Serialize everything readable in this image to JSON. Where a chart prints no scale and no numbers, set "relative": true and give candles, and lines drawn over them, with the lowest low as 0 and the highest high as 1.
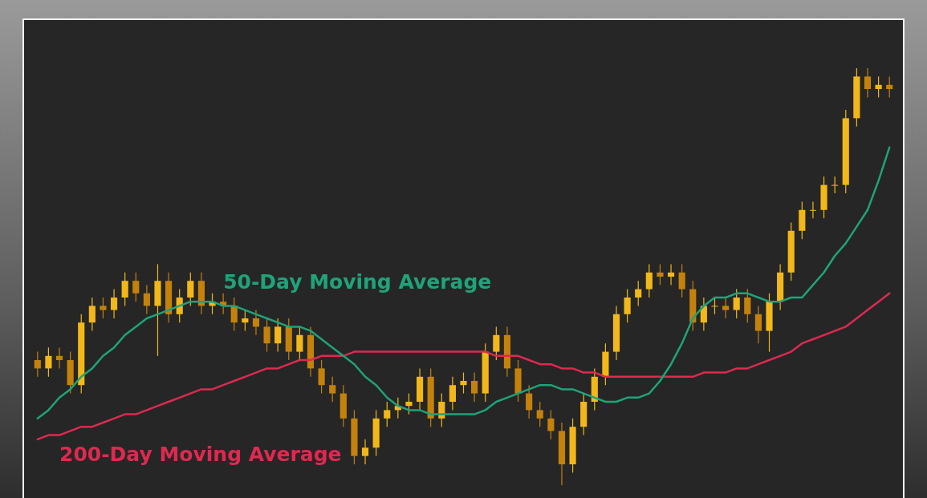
{
  "chart_data": {
    "type": "candlestick",
    "relative": true,
    "colors": [
      "#c4820c",
      "#f2b81a",
      "#c4820c",
      "#c4820c",
      "#f2b81a",
      "#f2b81a",
      "#c4820c",
      "#f2b81a",
      "#f2b81a",
      "#c4820c",
      "#c4820c",
      "#f2b81a",
      "#c4820c",
      "#f2b81a",
      "#f2b81a",
      "#c4820c",
      "#f2b81a",
      "#c4820c",
      "#c4820c",
      "#f2b81a",
      "#c4820c",
      "#c4820c",
      "#f2b81a",
      "#c4820c",
      "#f2b81a",
      "#c4820c",
      "#c4820c",
      "#c4820c",
      "#c4820c",
      "#c4820c",
      "#f2b81a",
      "#f2b81a",
      "#f2b81a",
      "#f2b81a",
      "#f2b81a",
      "#f2b81a",
      "#c4820c",
      "#f2b81a",
      "#f2b81a",
      "#f2b81a",
      "#c4820c",
      "#f2b81a",
      "#f2b81a",
      "#c4820c",
      "#c4820c",
      "#c4820c",
      "#c4820c",
      "#c4820c",
      "#c4820c",
      "#f2b81a",
      "#f2b81a",
      "#f2b81a",
      "#f2b81a",
      "#f2b81a",
      "#f2b81a",
      "#f2b81a",
      "#f2b81a",
      "#c4820c",
      "#f2b81a",
      "#c4820c",
      "#c4820c",
      "#f2b81a",
      "#f2b81a",
      "#c4820c",
      "#f2b81a",
      "#c4820c",
      "#c4820c",
      "#f2b81a",
      "#f2b81a",
      "#f2b81a",
      "#f2b81a",
      "#f2b81a",
      "#f2b81a",
      "#f2b81a",
      "#f2b81a",
      "#f2b81a",
      "#c4820c",
      "#f2b81a",
      "#c4820c"
    ],
    "categories": [
      null,
      null,
      null,
      null,
      null,
      null,
      null,
      null,
      null,
      null,
      null,
      null,
      null,
      null,
      null,
      null,
      null,
      null,
      null,
      null,
      null,
      null,
      null,
      null,
      null,
      null,
      null,
      null,
      null,
      null,
      null,
      null,
      null,
      null,
      null,
      null,
      null,
      null,
      null,
      null,
      null,
      null,
      null,
      null,
      null,
      null,
      null,
      null,
      null,
      null,
      null,
      null,
      null,
      null,
      null,
      null,
      null,
      null,
      null,
      null,
      null,
      null,
      null,
      null,
      null,
      null,
      null,
      null,
      null,
      null,
      null,
      null,
      null,
      null,
      null,
      null,
      null,
      null,
      null
    ],
    "ohlc": [
      [
        0.3,
        0.32,
        0.26,
        0.28
      ],
      [
        0.28,
        0.33,
        0.26,
        0.31
      ],
      [
        0.31,
        0.33,
        0.28,
        0.3
      ],
      [
        0.3,
        0.32,
        0.22,
        0.24
      ],
      [
        0.24,
        0.41,
        0.22,
        0.39
      ],
      [
        0.39,
        0.45,
        0.37,
        0.43
      ],
      [
        0.43,
        0.45,
        0.4,
        0.42
      ],
      [
        0.42,
        0.47,
        0.4,
        0.45
      ],
      [
        0.45,
        0.51,
        0.43,
        0.49
      ],
      [
        0.49,
        0.51,
        0.44,
        0.46
      ],
      [
        0.46,
        0.48,
        0.41,
        0.43
      ],
      [
        0.43,
        0.53,
        0.31,
        0.49
      ],
      [
        0.49,
        0.51,
        0.39,
        0.41
      ],
      [
        0.41,
        0.47,
        0.39,
        0.45
      ],
      [
        0.45,
        0.51,
        0.43,
        0.49
      ],
      [
        0.49,
        0.51,
        0.41,
        0.43
      ],
      [
        0.43,
        0.46,
        0.41,
        0.44
      ],
      [
        0.44,
        0.46,
        0.41,
        0.43
      ],
      [
        0.43,
        0.45,
        0.37,
        0.39
      ],
      [
        0.39,
        0.42,
        0.37,
        0.4
      ],
      [
        0.4,
        0.42,
        0.36,
        0.38
      ],
      [
        0.38,
        0.4,
        0.32,
        0.34
      ],
      [
        0.34,
        0.4,
        0.32,
        0.38
      ],
      [
        0.38,
        0.4,
        0.3,
        0.32
      ],
      [
        0.32,
        0.38,
        0.3,
        0.36
      ],
      [
        0.36,
        0.38,
        0.26,
        0.28
      ],
      [
        0.28,
        0.3,
        0.22,
        0.24
      ],
      [
        0.24,
        0.26,
        0.2,
        0.22
      ],
      [
        0.22,
        0.24,
        0.14,
        0.16
      ],
      [
        0.16,
        0.18,
        0.05,
        0.07
      ],
      [
        0.07,
        0.11,
        0.05,
        0.09
      ],
      [
        0.09,
        0.18,
        0.07,
        0.16
      ],
      [
        0.16,
        0.2,
        0.14,
        0.18
      ],
      [
        0.18,
        0.21,
        0.16,
        0.19
      ],
      [
        0.19,
        0.22,
        0.17,
        0.2
      ],
      [
        0.2,
        0.28,
        0.18,
        0.26
      ],
      [
        0.26,
        0.28,
        0.14,
        0.16
      ],
      [
        0.16,
        0.22,
        0.14,
        0.2
      ],
      [
        0.2,
        0.26,
        0.18,
        0.24
      ],
      [
        0.24,
        0.27,
        0.22,
        0.25
      ],
      [
        0.25,
        0.27,
        0.2,
        0.22
      ],
      [
        0.22,
        0.34,
        0.2,
        0.32
      ],
      [
        0.32,
        0.38,
        0.3,
        0.36
      ],
      [
        0.36,
        0.38,
        0.26,
        0.28
      ],
      [
        0.28,
        0.3,
        0.2,
        0.22
      ],
      [
        0.22,
        0.24,
        0.16,
        0.18
      ],
      [
        0.18,
        0.2,
        0.14,
        0.16
      ],
      [
        0.16,
        0.18,
        0.11,
        0.13
      ],
      [
        0.13,
        0.15,
        0.0,
        0.05
      ],
      [
        0.05,
        0.16,
        0.03,
        0.14
      ],
      [
        0.14,
        0.22,
        0.12,
        0.2
      ],
      [
        0.2,
        0.28,
        0.18,
        0.26
      ],
      [
        0.26,
        0.34,
        0.24,
        0.32
      ],
      [
        0.32,
        0.43,
        0.3,
        0.41
      ],
      [
        0.41,
        0.47,
        0.39,
        0.45
      ],
      [
        0.45,
        0.49,
        0.43,
        0.47
      ],
      [
        0.47,
        0.53,
        0.45,
        0.51
      ],
      [
        0.51,
        0.53,
        0.48,
        0.5
      ],
      [
        0.5,
        0.53,
        0.48,
        0.51
      ],
      [
        0.51,
        0.53,
        0.45,
        0.47
      ],
      [
        0.47,
        0.49,
        0.37,
        0.39
      ],
      [
        0.39,
        0.45,
        0.37,
        0.43
      ],
      [
        0.43,
        0.45,
        0.41,
        0.43
      ],
      [
        0.43,
        0.45,
        0.4,
        0.42
      ],
      [
        0.42,
        0.47,
        0.4,
        0.45
      ],
      [
        0.45,
        0.47,
        0.39,
        0.41
      ],
      [
        0.41,
        0.43,
        0.34,
        0.37
      ],
      [
        0.37,
        0.46,
        0.32,
        0.44
      ],
      [
        0.44,
        0.53,
        0.42,
        0.51
      ],
      [
        0.51,
        0.63,
        0.49,
        0.61
      ],
      [
        0.61,
        0.68,
        0.59,
        0.66
      ],
      [
        0.66,
        0.68,
        0.64,
        0.66
      ],
      [
        0.66,
        0.74,
        0.64,
        0.72
      ],
      [
        0.72,
        0.74,
        0.7,
        0.72
      ],
      [
        0.72,
        0.9,
        0.7,
        0.88
      ],
      [
        0.88,
        1.0,
        0.86,
        0.98
      ],
      [
        0.98,
        1.0,
        0.93,
        0.95
      ],
      [
        0.95,
        0.98,
        0.93,
        0.96
      ],
      [
        0.96,
        0.98,
        0.93,
        0.95
      ]
    ],
    "series": [
      {
        "type": "line",
        "name": "50-Day Moving Average",
        "color": "#1fa37a",
        "values": [
          0.16,
          0.18,
          0.21,
          0.23,
          0.26,
          0.28,
          0.31,
          0.33,
          0.36,
          0.38,
          0.4,
          0.41,
          0.42,
          0.43,
          0.44,
          0.44,
          0.44,
          0.43,
          0.43,
          0.42,
          0.41,
          0.4,
          0.39,
          0.38,
          0.38,
          0.37,
          0.35,
          0.33,
          0.31,
          0.29,
          0.26,
          0.24,
          0.21,
          0.19,
          0.18,
          0.18,
          0.17,
          0.17,
          0.17,
          0.17,
          0.17,
          0.18,
          0.2,
          0.21,
          0.22,
          0.23,
          0.24,
          0.24,
          0.23,
          0.23,
          0.22,
          0.21,
          0.2,
          0.2,
          0.21,
          0.21,
          0.22,
          0.25,
          0.29,
          0.34,
          0.4,
          0.43,
          0.45,
          0.45,
          0.46,
          0.46,
          0.45,
          0.44,
          0.44,
          0.45,
          0.45,
          0.48,
          0.51,
          0.55,
          0.58,
          0.62,
          0.66,
          0.73,
          0.81
        ]
      },
      {
        "type": "line",
        "name": "200-Day Moving Average",
        "color": "#dd2a4f",
        "values": [
          0.11,
          0.12,
          0.12,
          0.13,
          0.14,
          0.14,
          0.15,
          0.16,
          0.17,
          0.17,
          0.18,
          0.19,
          0.2,
          0.21,
          0.22,
          0.23,
          0.23,
          0.24,
          0.25,
          0.26,
          0.27,
          0.28,
          0.28,
          0.29,
          0.3,
          0.3,
          0.31,
          0.31,
          0.31,
          0.32,
          0.32,
          0.32,
          0.32,
          0.32,
          0.32,
          0.32,
          0.32,
          0.32,
          0.32,
          0.32,
          0.32,
          0.32,
          0.31,
          0.31,
          0.31,
          0.3,
          0.29,
          0.29,
          0.28,
          0.28,
          0.27,
          0.27,
          0.26,
          0.26,
          0.26,
          0.26,
          0.26,
          0.26,
          0.26,
          0.26,
          0.26,
          0.27,
          0.27,
          0.27,
          0.28,
          0.28,
          0.29,
          0.3,
          0.31,
          0.32,
          0.34,
          0.35,
          0.36,
          0.37,
          0.38,
          0.4,
          0.42,
          0.44,
          0.46
        ]
      }
    ]
  }
}
